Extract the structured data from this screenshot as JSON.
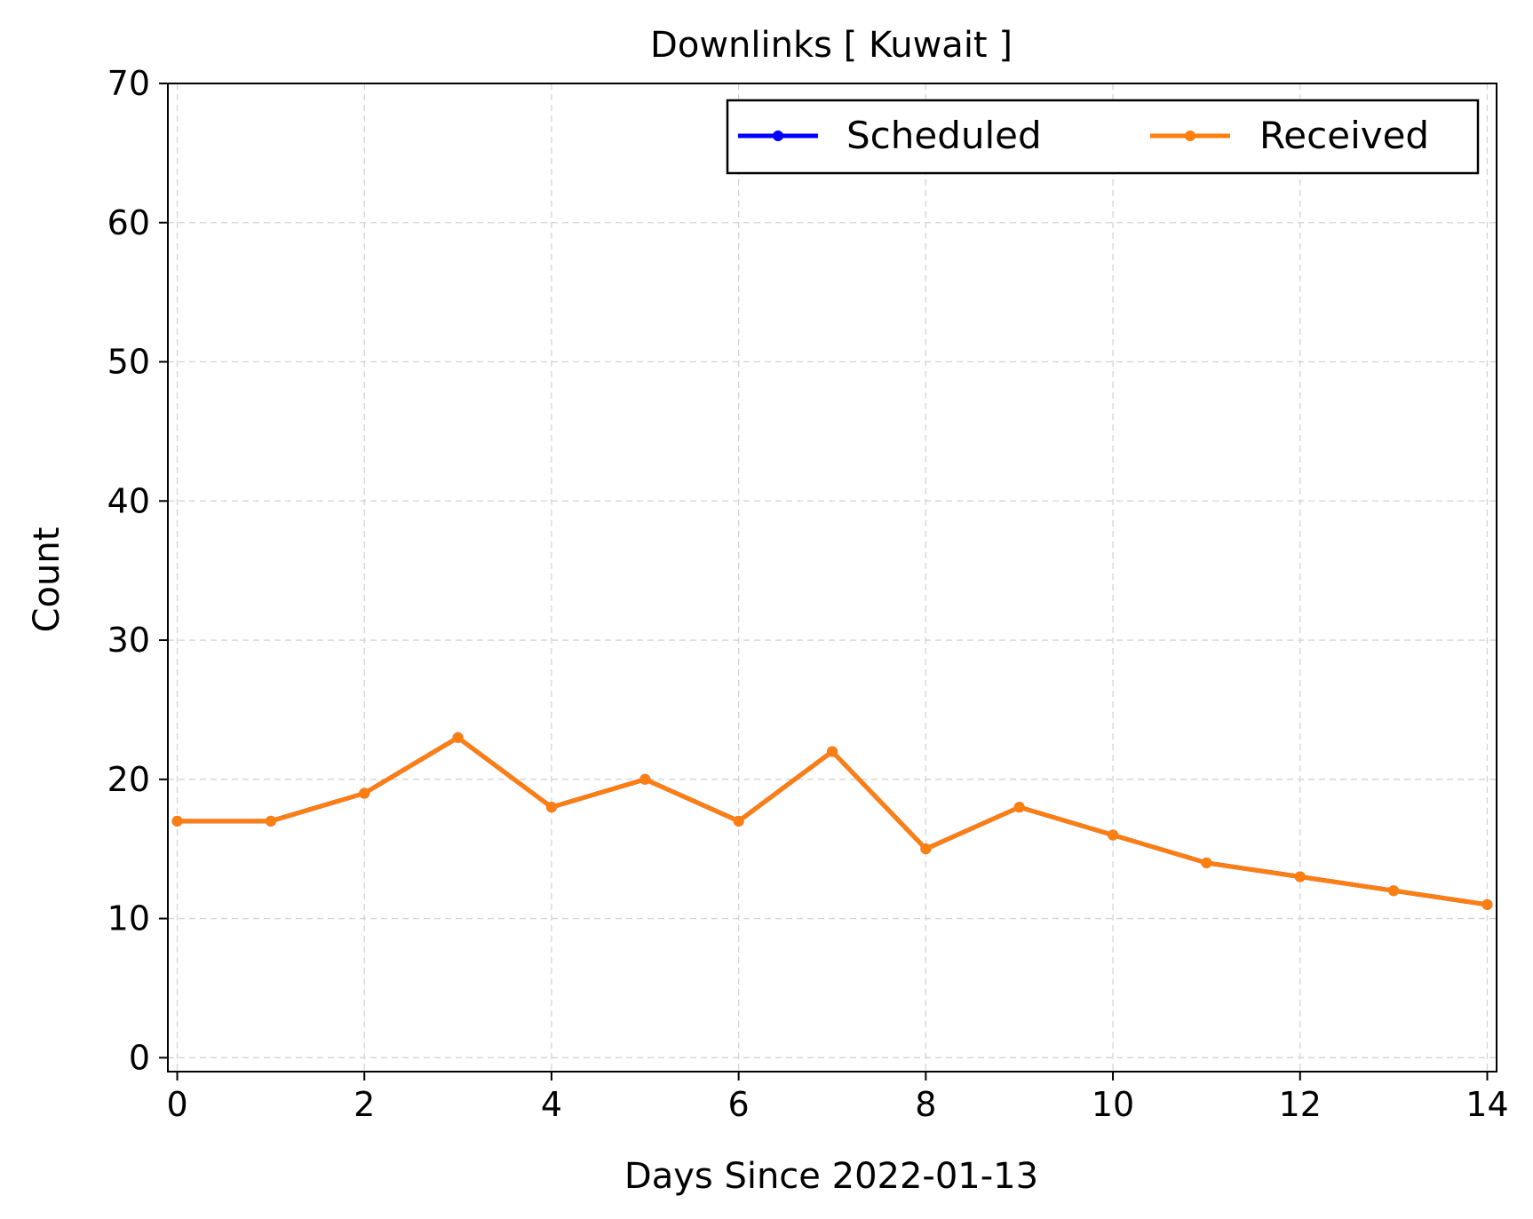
{
  "chart_data": {
    "type": "line",
    "title": "Downlinks [ Kuwait ]",
    "xlabel": "Days Since 2022-01-13",
    "ylabel": "Count",
    "xlim": [
      -0.1,
      14.1
    ],
    "ylim": [
      -1,
      70
    ],
    "xticks": [
      0,
      2,
      4,
      6,
      8,
      10,
      12,
      14
    ],
    "yticks": [
      0,
      10,
      20,
      30,
      40,
      50,
      60,
      70
    ],
    "grid": true,
    "legend_position": "top-right",
    "x": [
      0,
      1,
      2,
      3,
      4,
      5,
      6,
      7,
      8,
      9,
      10,
      11,
      12,
      13,
      14
    ],
    "series": [
      {
        "name": "Scheduled",
        "color": "#0000ff",
        "values": [
          17,
          17,
          19,
          23,
          18,
          20,
          17,
          22,
          15,
          18,
          16,
          14,
          13,
          12,
          11
        ]
      },
      {
        "name": "Received",
        "color": "#ff7f0e",
        "values": [
          17,
          17,
          19,
          23,
          18,
          20,
          17,
          22,
          15,
          18,
          16,
          14,
          13,
          12,
          11
        ]
      }
    ]
  }
}
